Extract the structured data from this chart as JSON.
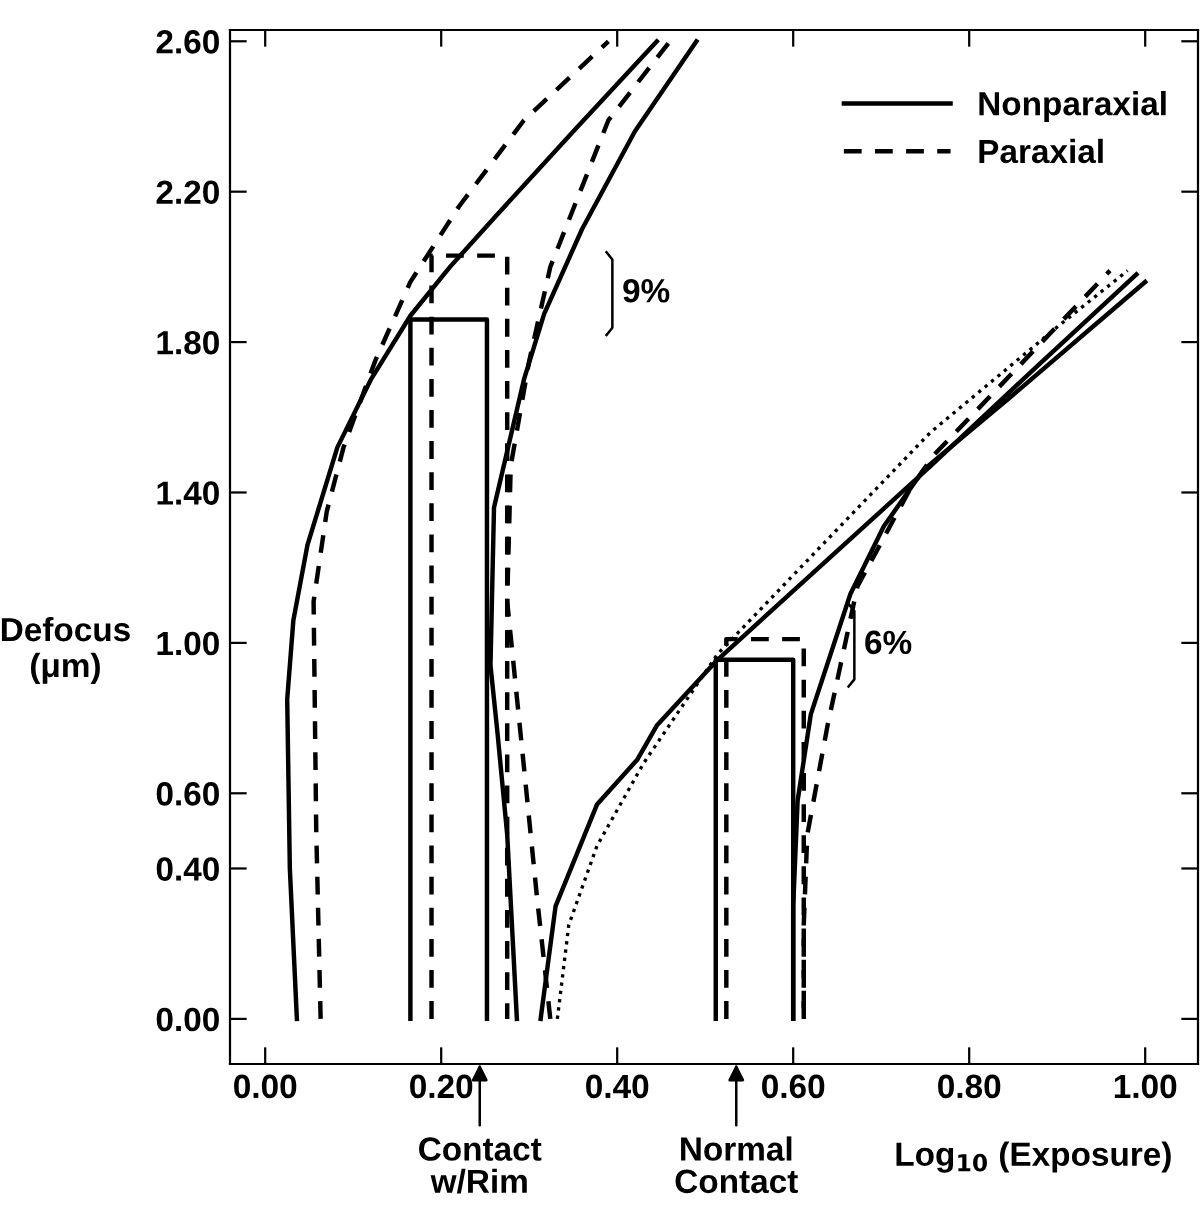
{
  "chart_data": {
    "type": "line",
    "xlabel": "Log$_{10}$ (Exposure)",
    "ylabel": "Defocus\n(μm)",
    "xlim": [
      -0.04,
      1.06
    ],
    "ylim": [
      -0.12,
      2.63
    ],
    "xticks": [
      {
        "value": 0,
        "label": "0.00"
      },
      {
        "value": 0.2,
        "label": "0.20"
      },
      {
        "value": 0.4,
        "label": "0.40"
      },
      {
        "value": 0.6,
        "label": "0.60"
      },
      {
        "value": 0.8,
        "label": "0.80"
      },
      {
        "value": 1.0,
        "label": "1.00"
      }
    ],
    "yticks": [
      {
        "value": 0,
        "label": "0.00"
      },
      {
        "value": 0.4,
        "label": "0.40"
      },
      {
        "value": 0.6,
        "label": "0.60"
      },
      {
        "value": 1.0,
        "label": "1.00"
      },
      {
        "value": 1.4,
        "label": "1.40"
      },
      {
        "value": 1.8,
        "label": "1.80"
      },
      {
        "value": 2.2,
        "label": "2.20"
      },
      {
        "value": 2.6,
        "label": "2.60"
      }
    ],
    "grid": false,
    "legend": "top right",
    "marker": "none",
    "series": [
      {
        "name": "Nonparaxial",
        "color": "#000000",
        "line_style": "solid",
        "x": [
          0.036,
          0.028,
          0.025,
          0.032,
          0.048,
          0.082,
          0.12,
          0.165,
          0.21,
          0.264,
          0.35,
          0.445
        ],
        "values": [
          0,
          0.4,
          0.85,
          1.06,
          1.26,
          1.52,
          1.7,
          1.87,
          2.0,
          2.14,
          2.36,
          2.6
        ]
      },
      {
        "name": "Paraxial",
        "color": "#000000",
        "line_style": "dashed",
        "x": [
          0.063,
          0.058,
          0.055,
          0.07,
          0.089,
          0.125,
          0.165,
          0.22,
          0.294,
          0.39
        ],
        "values": [
          0,
          0.5,
          1.11,
          1.35,
          1.52,
          1.75,
          1.96,
          2.16,
          2.39,
          2.6
        ]
      },
      {
        "color": "#000000",
        "line_style": "solid",
        "x": [
          0.286,
          0.275,
          0.264,
          0.256,
          0.26,
          0.294,
          0.317,
          0.36,
          0.42,
          0.49
        ],
        "values": [
          0,
          0.49,
          0.76,
          0.94,
          1.36,
          1.7,
          1.875,
          2.1,
          2.36,
          2.6
        ]
      },
      {
        "color": "#000000",
        "line_style": "dashed",
        "x": [
          0.324,
          0.309,
          0.294,
          0.275,
          0.279,
          0.3,
          0.324,
          0.39,
          0.46
        ],
        "values": [
          0,
          0.32,
          0.67,
          1.11,
          1.47,
          1.75,
          2.0,
          2.39,
          2.6
        ]
      },
      {
        "color": "#000000",
        "line_style": "solid",
        "x": [
          0.313,
          0.33,
          0.377,
          0.423,
          0.445,
          0.514,
          0.756,
          0.87,
          0.99
        ],
        "values": [
          0,
          0.3,
          0.57,
          0.69,
          0.78,
          0.955,
          1.47,
          1.72,
          1.98
        ]
      },
      {
        "color": "#000000",
        "line_style": "solid",
        "x": [
          0.6,
          0.6,
          0.605,
          0.62,
          0.665,
          0.703,
          0.748,
          0.85,
          0.96,
          1.0
        ],
        "values": [
          0,
          0.3,
          0.58,
          0.81,
          1.13,
          1.31,
          1.46,
          1.66,
          1.88,
          1.96
        ]
      },
      {
        "color": "#000000",
        "line_style": "dashed",
        "x": [
          0.612,
          0.612,
          0.616,
          0.639,
          0.673,
          0.733,
          0.76,
          0.85,
          0.96
        ],
        "values": [
          0,
          0.25,
          0.49,
          0.78,
          1.15,
          1.41,
          1.5,
          1.72,
          1.99
        ]
      },
      {
        "color": "#000000",
        "line_style": "dotted",
        "x": [
          0.332,
          0.345,
          0.377,
          0.43,
          0.514,
          0.6,
          0.756,
          0.9,
          0.98
        ],
        "values": [
          0,
          0.25,
          0.46,
          0.68,
          0.97,
          1.18,
          1.56,
          1.84,
          1.99
        ]
      },
      {
        "color": "#000000",
        "line_style": "solid",
        "x": [
          0.165,
          0.165,
          0.252,
          0.252
        ],
        "values": [
          0,
          1.86,
          1.86,
          0
        ]
      },
      {
        "color": "#000000",
        "line_style": "dashed",
        "x": [
          0.189,
          0.189,
          0.275,
          0.275
        ],
        "values": [
          0,
          2.03,
          2.03,
          0
        ]
      },
      {
        "color": "#000000",
        "line_style": "solid",
        "x": [
          0.512,
          0.512,
          0.6,
          0.6
        ],
        "values": [
          0,
          0.955,
          0.955,
          0
        ]
      },
      {
        "color": "#000000",
        "line_style": "dashed",
        "x": [
          0.524,
          0.524,
          0.612,
          0.612
        ],
        "values": [
          0,
          1.01,
          1.01,
          0
        ]
      }
    ],
    "annotations": [
      "9%",
      "6%",
      "Contact\nw/Rim",
      "Normal\nContact"
    ]
  }
}
